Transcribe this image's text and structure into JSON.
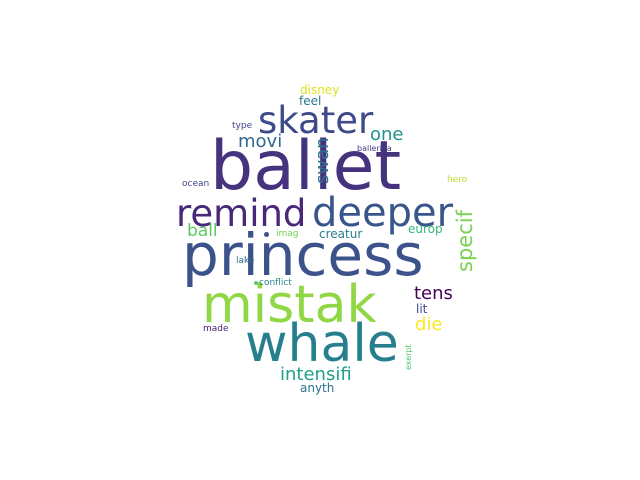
{
  "words": {
    "ballet": {
      "text": "ballet",
      "color": "#46337e"
    },
    "princess": {
      "text": "princess",
      "color": "#3b528b"
    },
    "mistak": {
      "text": "mistak",
      "color": "#8fd744"
    },
    "whale": {
      "text": "whale",
      "color": "#277f8e"
    },
    "deeper": {
      "text": "deeper",
      "color": "#39568c"
    },
    "remind": {
      "text": "remind",
      "color": "#482878"
    },
    "skater": {
      "text": "skater",
      "color": "#3e4a89"
    },
    "specif": {
      "text": "specif",
      "color": "#7ad151"
    },
    "intensifi": {
      "text": "intensifi",
      "color": "#1fa187"
    },
    "tens": {
      "text": "tens",
      "color": "#440154"
    },
    "die": {
      "text": "die",
      "color": "#fde725"
    },
    "one": {
      "text": "one",
      "color": "#21918c"
    },
    "movi": {
      "text": "movi",
      "color": "#31688e"
    },
    "swan": {
      "text": "swan",
      "color": "#2c728e"
    },
    "ball": {
      "text": "ball",
      "color": "#5ec962"
    },
    "creatur": {
      "text": "creatur",
      "color": "#287d8e"
    },
    "europ": {
      "text": "europ",
      "color": "#35b779"
    },
    "disney": {
      "text": "disney",
      "color": "#dde318"
    },
    "feel": {
      "text": "feel",
      "color": "#2a788e"
    },
    "anyth": {
      "text": "anyth",
      "color": "#2d708e"
    },
    "lit": {
      "text": "lit",
      "color": "#3f4788"
    },
    "type": {
      "text": "type",
      "color": "#414487"
    },
    "ballerina": {
      "text": "ballerina",
      "color": "#443983"
    },
    "ocean": {
      "text": "ocean",
      "color": "#404688"
    },
    "hero": {
      "text": "hero",
      "color": "#c0df25"
    },
    "imag": {
      "text": "imag",
      "color": "#73d056"
    },
    "lake": {
      "text": "lake",
      "color": "#2f6c8e"
    },
    "conflict": {
      "text": "conflict",
      "color": "#25858e"
    },
    "made": {
      "text": "made",
      "color": "#481b6d"
    },
    "exerpt": {
      "text": "exerpt",
      "color": "#52c569"
    }
  }
}
